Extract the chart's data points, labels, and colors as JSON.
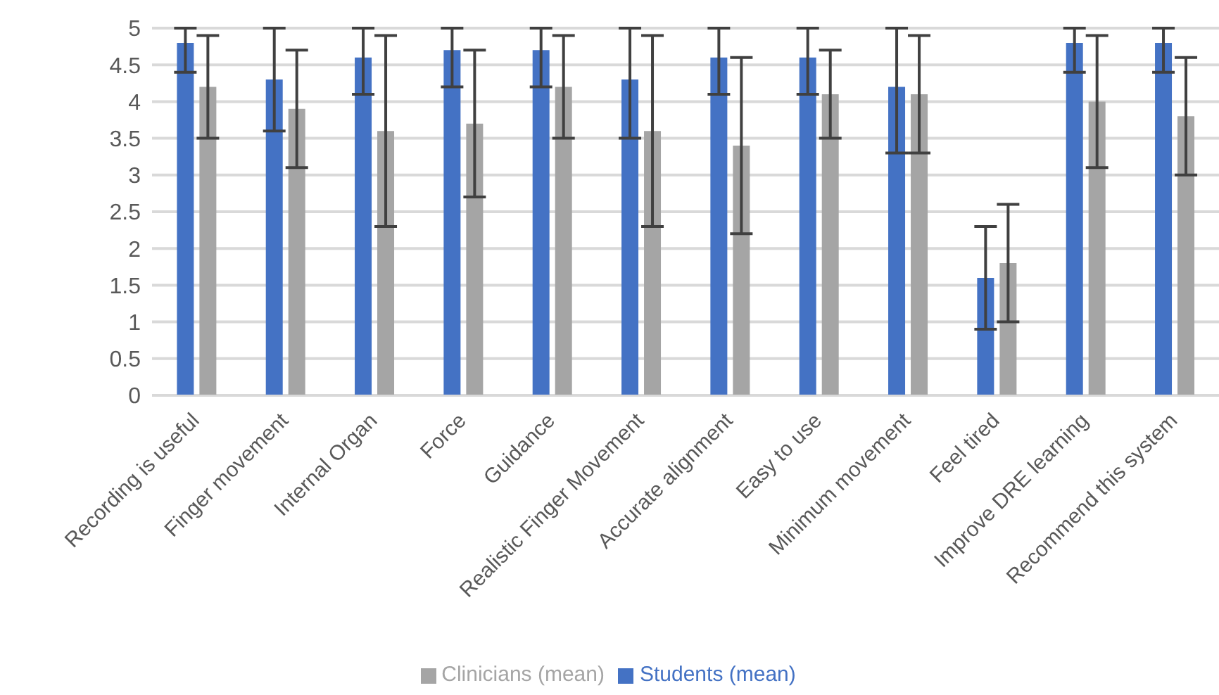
{
  "chart_data": {
    "type": "bar",
    "categories": [
      "Recording is useful",
      "Finger movement",
      "Internal Organ",
      "Force",
      "Guidance",
      "Realistic Finger Movement",
      "Accurate alignment",
      "Easy to use",
      "Minimum movement",
      "Feel tired",
      "Improve DRE learning",
      "Recommend this system"
    ],
    "series": [
      {
        "name": "Students (mean)",
        "color": "#4472c4",
        "values": [
          4.8,
          4.3,
          4.6,
          4.7,
          4.7,
          4.3,
          4.6,
          4.6,
          4.2,
          1.6,
          4.8,
          4.8
        ],
        "errors": [
          [
            4.4,
            5
          ],
          [
            3.6,
            5
          ],
          [
            4.1,
            5
          ],
          [
            4.2,
            5
          ],
          [
            4.2,
            5
          ],
          [
            3.5,
            5
          ],
          [
            4.1,
            5
          ],
          [
            4.1,
            5
          ],
          [
            3.3,
            5
          ],
          [
            0.9,
            2.3
          ],
          [
            4.4,
            5
          ],
          [
            4.4,
            5
          ]
        ]
      },
      {
        "name": "Clinicians (mean)",
        "color": "#a5a5a5",
        "values": [
          4.2,
          3.9,
          3.6,
          3.7,
          4.2,
          3.6,
          3.4,
          4.1,
          4.1,
          1.8,
          4.0,
          3.8
        ],
        "errors": [
          [
            3.5,
            4.9
          ],
          [
            3.1,
            4.7
          ],
          [
            2.3,
            4.9
          ],
          [
            2.7,
            4.7
          ],
          [
            3.5,
            4.9
          ],
          [
            2.3,
            4.9
          ],
          [
            2.2,
            4.6
          ],
          [
            3.5,
            4.7
          ],
          [
            3.3,
            4.9
          ],
          [
            1.0,
            2.6
          ],
          [
            3.1,
            4.9
          ],
          [
            3.0,
            4.6
          ]
        ]
      }
    ],
    "ylim": [
      0,
      5
    ],
    "yticks": [
      0,
      0.5,
      1,
      1.5,
      2,
      2.5,
      3,
      3.5,
      4,
      4.5,
      5
    ],
    "grid": "y",
    "legend": "bottom"
  }
}
